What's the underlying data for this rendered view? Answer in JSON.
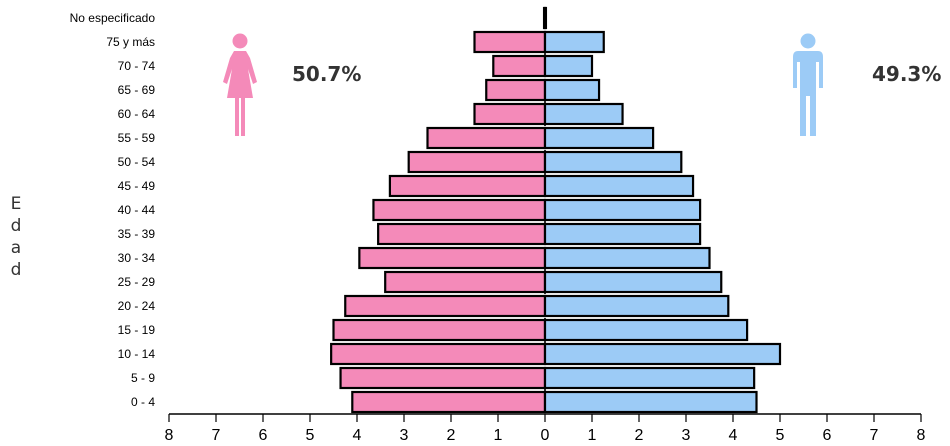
{
  "chart_data": {
    "type": "bar",
    "orientation": "horizontal",
    "layout": "population-pyramid",
    "ylabel": "Edad",
    "categories": [
      "No especificado",
      "75 y más",
      "70 - 74",
      "65 - 69",
      "60 - 64",
      "55 - 59",
      "50 - 54",
      "45 - 49",
      "40 - 44",
      "35 - 39",
      "30 - 34",
      "25 - 29",
      "20 - 24",
      "15 - 19",
      "10 - 14",
      "5 - 9",
      "0 - 4"
    ],
    "x_ticks": [
      "8",
      "7",
      "6",
      "5",
      "4",
      "3",
      "2",
      "1",
      "0",
      "1",
      "2",
      "3",
      "4",
      "5",
      "6",
      "7",
      "8"
    ],
    "xlim": [
      -8,
      8
    ],
    "series": [
      {
        "color": "#f48ab9",
        "values": [
          0.02,
          1.5,
          1.1,
          1.25,
          1.5,
          2.5,
          2.9,
          3.3,
          3.65,
          3.55,
          3.95,
          3.4,
          4.25,
          4.5,
          4.55,
          4.35,
          4.1
        ]
      },
      {
        "color": "#9ccbf6",
        "values": [
          0.02,
          1.25,
          1.0,
          1.15,
          1.65,
          2.3,
          2.9,
          3.15,
          3.3,
          3.3,
          3.5,
          3.75,
          3.9,
          4.3,
          5.0,
          4.45,
          4.5
        ]
      }
    ],
    "annotations": {
      "female_pct": "50.7%",
      "male_pct": "49.3%"
    }
  },
  "icons": {
    "female": "woman-icon",
    "male": "man-icon"
  },
  "colors": {
    "female": "#f48ab9",
    "male": "#9ccbf6",
    "bar_outline": "#000000"
  }
}
